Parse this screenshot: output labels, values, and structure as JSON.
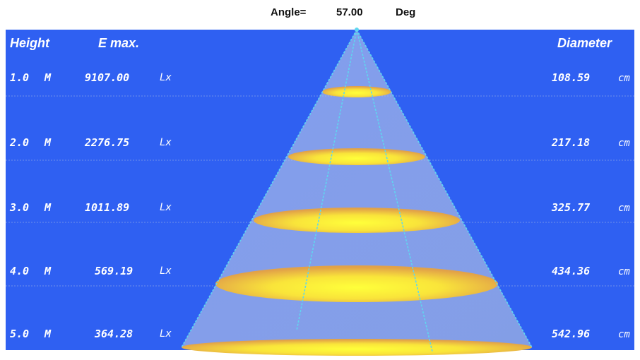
{
  "angle": {
    "label": "Angle=",
    "value": "57.00",
    "unit": "Deg"
  },
  "headers": {
    "height": "Height",
    "emax": "E max.",
    "diameter": "Diameter"
  },
  "units": {
    "height": "M",
    "emax": "Lx",
    "diameter": "cm"
  },
  "colors": {
    "panel": "#2f60f2",
    "cone": "#a9b9e6",
    "beam_line": "#5fd6f0",
    "ellipse_center": "#ffff33",
    "ellipse_edge": "#e8a040"
  },
  "rows": [
    {
      "height": "1.0",
      "emax": "9107.00",
      "diameter": "108.59"
    },
    {
      "height": "2.0",
      "emax": "2276.75",
      "diameter": "217.18"
    },
    {
      "height": "3.0",
      "emax": "1011.89",
      "diameter": "325.77"
    },
    {
      "height": "4.0",
      "emax": "569.19",
      "diameter": "434.36"
    },
    {
      "height": "5.0",
      "emax": "364.28",
      "diameter": "542.96"
    }
  ]
}
